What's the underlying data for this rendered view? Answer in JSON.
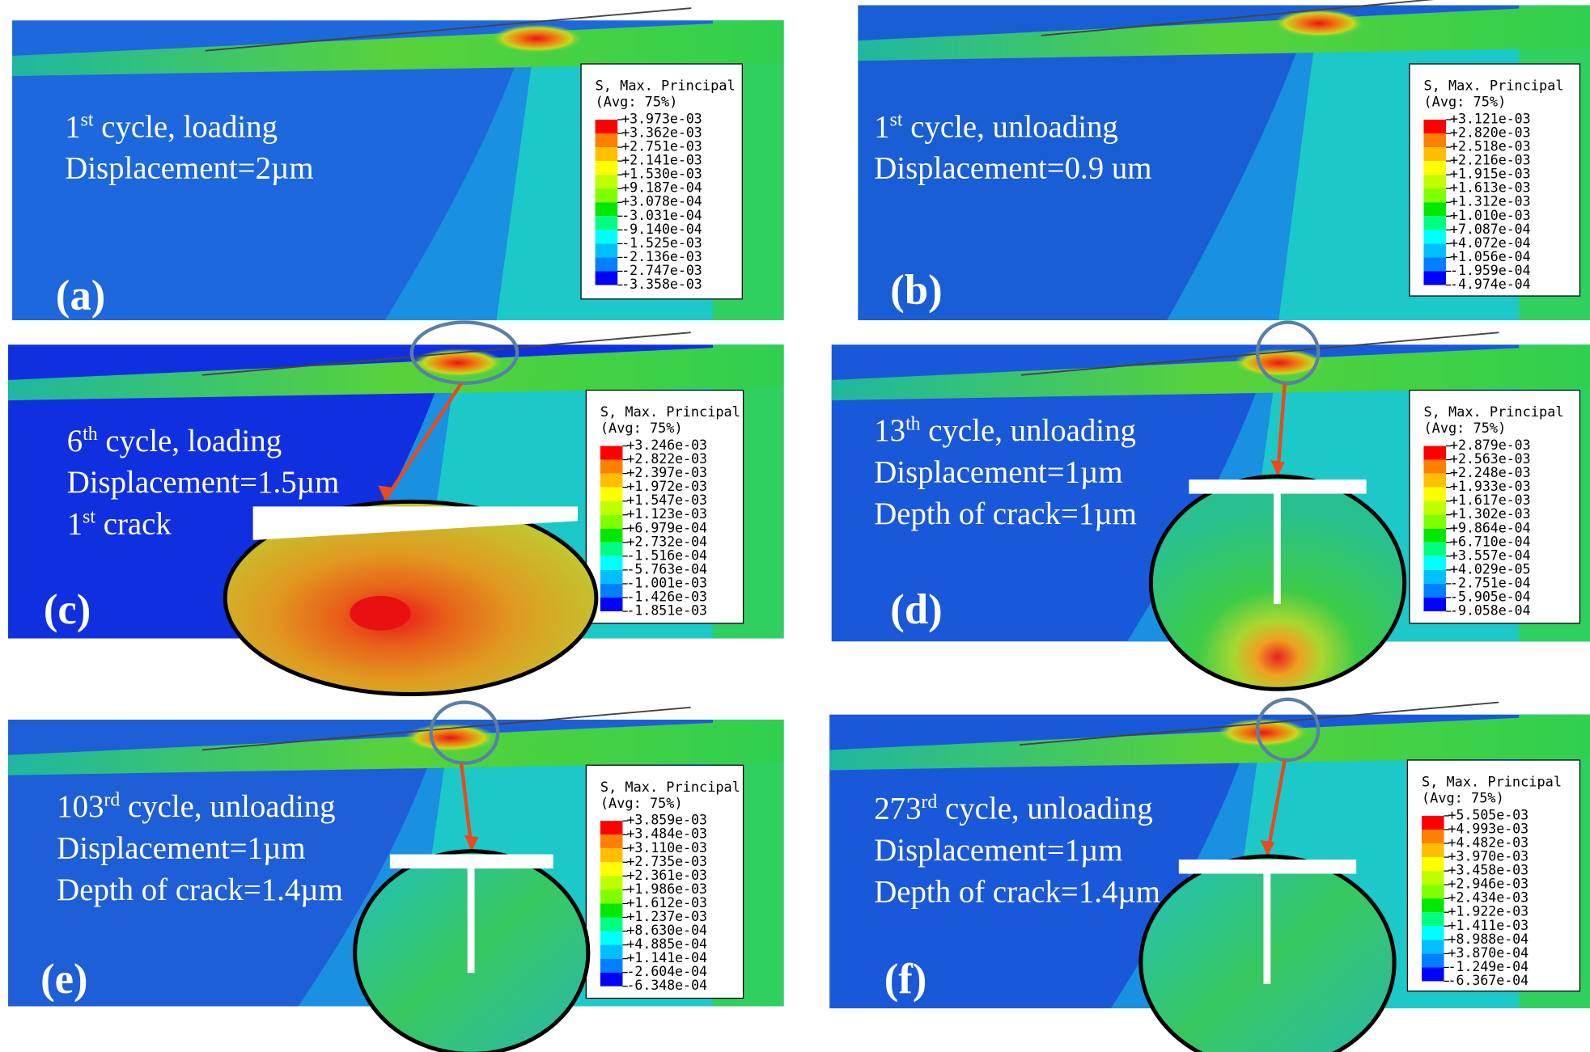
{
  "panels": [
    {
      "label": "(a)",
      "lines": [
        {
          "pre": "1",
          "sup": "st",
          "post": " cycle, loading"
        },
        "Displacement=2µm"
      ],
      "legend": {
        "title": "S, Max. Principal",
        "subtitle": "(Avg: 75%)",
        "values": [
          "+3.973e-03",
          "+3.362e-03",
          "+2.751e-03",
          "+2.141e-03",
          "+1.530e-03",
          "+9.187e-04",
          "+3.078e-04",
          "-3.031e-04",
          "-9.140e-04",
          "-1.525e-03",
          "-2.136e-03",
          "-2.747e-03",
          "-3.358e-03"
        ]
      }
    },
    {
      "label": "(b)",
      "lines": [
        {
          "pre": "1",
          "sup": "st",
          "post": " cycle, unloading"
        },
        "Displacement=0.9 um"
      ],
      "legend": {
        "title": "S, Max. Principal",
        "subtitle": "(Avg: 75%)",
        "values": [
          "+3.121e-03",
          "+2.820e-03",
          "+2.518e-03",
          "+2.216e-03",
          "+1.915e-03",
          "+1.613e-03",
          "+1.312e-03",
          "+1.010e-03",
          "+7.087e-04",
          "+4.072e-04",
          "+1.056e-04",
          "-1.959e-04",
          "-4.974e-04"
        ]
      }
    },
    {
      "label": "(c)",
      "lines": [
        {
          "pre": "6",
          "sup": "th",
          "post": " cycle, loading"
        },
        "Displacement=1.5µm",
        {
          "pre": "1",
          "sup": "st",
          "post": " crack"
        }
      ],
      "legend": {
        "title": "S, Max. Principal",
        "subtitle": "(Avg: 75%)",
        "values": [
          "+3.246e-03",
          "+2.822e-03",
          "+2.397e-03",
          "+1.972e-03",
          "+1.547e-03",
          "+1.123e-03",
          "+6.979e-04",
          "+2.732e-04",
          "-1.516e-04",
          "-5.763e-04",
          "-1.001e-03",
          "-1.426e-03",
          "-1.851e-03"
        ]
      }
    },
    {
      "label": "(d)",
      "lines": [
        {
          "pre": "13",
          "sup": "th",
          "post": " cycle, unloading"
        },
        "Displacement=1µm",
        "Depth of crack=1µm"
      ],
      "legend": {
        "title": "S, Max. Principal",
        "subtitle": "(Avg: 75%)",
        "values": [
          "+2.879e-03",
          "+2.563e-03",
          "+2.248e-03",
          "+1.933e-03",
          "+1.617e-03",
          "+1.302e-03",
          "+9.864e-04",
          "+6.710e-04",
          "+3.557e-04",
          "+4.029e-05",
          "-2.751e-04",
          "-5.905e-04",
          "-9.058e-04"
        ]
      }
    },
    {
      "label": "(e)",
      "lines": [
        {
          "pre": "103",
          "sup": "rd",
          "post": " cycle, unloading"
        },
        "Displacement=1µm",
        "Depth of crack=1.4µm"
      ],
      "legend": {
        "title": "S, Max. Principal",
        "subtitle": "(Avg: 75%)",
        "values": [
          "+3.859e-03",
          "+3.484e-03",
          "+3.110e-03",
          "+2.735e-03",
          "+2.361e-03",
          "+1.986e-03",
          "+1.612e-03",
          "+1.237e-03",
          "+8.630e-04",
          "+4.885e-04",
          "+1.141e-04",
          "-2.604e-04",
          "-6.348e-04"
        ]
      }
    },
    {
      "label": "(f)",
      "lines": [
        {
          "pre": "273",
          "sup": "rd",
          "post": " cycle, unloading"
        },
        "Displacement=1µm",
        "Depth of crack=1.4µm"
      ],
      "legend": {
        "title": "S, Max. Principal",
        "subtitle": "(Avg: 75%)",
        "values": [
          "+5.505e-03",
          "+4.993e-03",
          "+4.482e-03",
          "+3.970e-03",
          "+3.458e-03",
          "+2.946e-03",
          "+2.434e-03",
          "+1.922e-03",
          "+1.411e-03",
          "+8.988e-04",
          "+3.870e-04",
          "-1.249e-04",
          "-6.367e-04"
        ]
      }
    }
  ]
}
